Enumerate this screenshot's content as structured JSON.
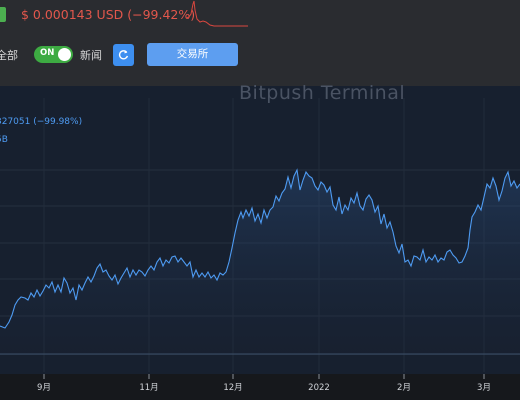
{
  "header": {
    "price_text": "$ 0.000143 USD (−99.42%)",
    "price_color": "#e2574c",
    "badge_color": "#4caf50"
  },
  "controls": {
    "all_label": "全部",
    "toggle_label": "ON",
    "toggle_on": true,
    "news_label": "新闻",
    "refresh_icon": "refresh-icon",
    "exchange_label": "交易所"
  },
  "chart": {
    "watermark": "Bitpush Terminal",
    "legend_line1": "327051 (−99.98%)",
    "legend_line2": "5B",
    "line_color": "#4e9bf2",
    "x_ticks": [
      "9月",
      "11月",
      "12月",
      "2022",
      "2月",
      "3月"
    ]
  }
}
